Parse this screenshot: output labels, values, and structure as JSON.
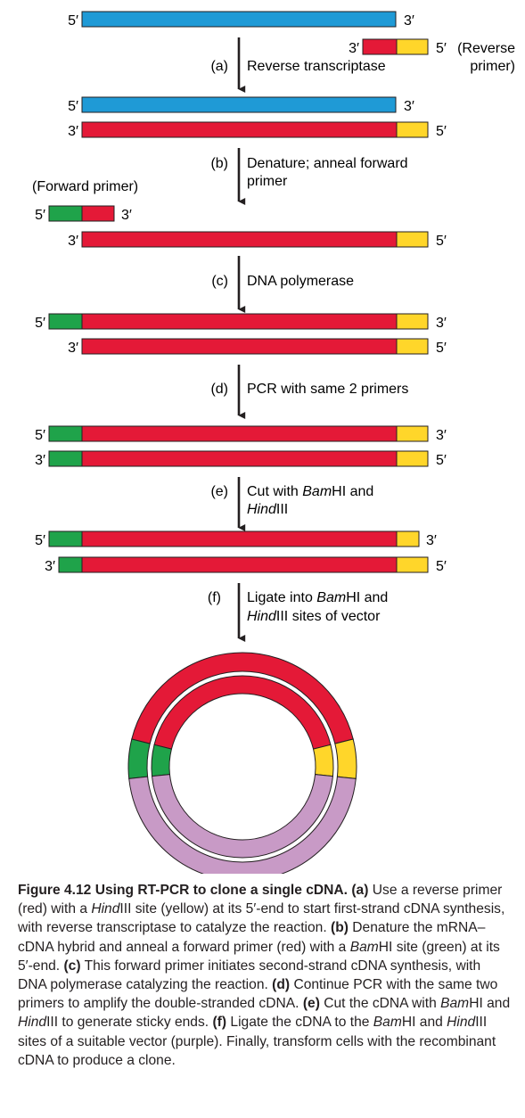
{
  "colors": {
    "mrna": "#1f9ad6",
    "cdna": "#e41937",
    "hindiii_site": "#ffd62a",
    "bamhi_site": "#1fa34a",
    "vector": "#c89ac6",
    "outline": "#231f20"
  },
  "labels": {
    "five_prime": "5′",
    "three_prime": "3′",
    "reverse_primer_a": "(Reverse",
    "reverse_primer_b": "primer)",
    "forward_primer": "(Forward primer)"
  },
  "steps": {
    "a": {
      "letter": "(a)",
      "line1": "Reverse transcriptase"
    },
    "b": {
      "letter": "(b)",
      "line1": "Denature; anneal forward",
      "line2": "primer"
    },
    "c": {
      "letter": "(c)",
      "line1": "DNA polymerase"
    },
    "d": {
      "letter": "(d)",
      "line1": "PCR with same 2 primers"
    },
    "e": {
      "letter": "(e)",
      "line1_pre": "Cut with ",
      "line1_it": "Bam",
      "line1_post": "HI and",
      "line2_it": "Hind",
      "line2_post": "III"
    },
    "f": {
      "letter": "(f)",
      "line1_pre": "Ligate into ",
      "line1_it": "Bam",
      "line1_post": "HI and",
      "line2_it": "Hind",
      "line2_post": "III sites of vector"
    }
  },
  "caption": {
    "figure_label": "Figure 4.12",
    "title": "Using RT-PCR to clone a single cDNA.",
    "a_label": "(a)",
    "a_text1": "Use a reverse primer (red) with a ",
    "hind": "Hind",
    "a_text2": "III site (yellow) at its 5′-end to start first-strand cDNA synthesis, with reverse transcriptase to catalyze the reaction.",
    "b_label": "(b)",
    "b_text1": "Denature the mRNA–cDNA hybrid and anneal a forward primer (red) with a ",
    "bam": "Bam",
    "b_text2": "HI site (green) at its 5′-end.",
    "c_label": "(c)",
    "c_text": "This forward primer initiates second-strand cDNA synthesis, with DNA polymerase catalyzing the reaction.",
    "d_label": "(d)",
    "d_text": "Continue PCR with the same two primers to amplify the double-stranded cDNA.",
    "e_label": "(e)",
    "e_text1": "Cut the cDNA with ",
    "e_text2": "HI and ",
    "e_text3": "III to generate sticky ends.",
    "f_label": "(f)",
    "f_text1": "Ligate the cDNA to the ",
    "f_text2": "HI and ",
    "f_text3": "III sites of a suitable vector (purple). Finally, transform cells with the recombinant cDNA to produce a clone."
  }
}
